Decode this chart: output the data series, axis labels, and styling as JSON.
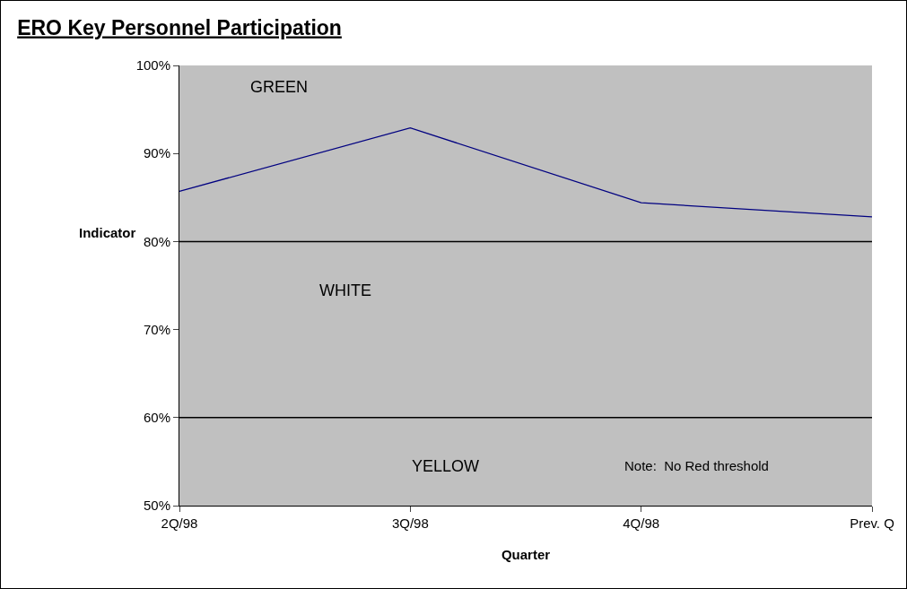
{
  "chart_data": {
    "type": "line",
    "title": "ERO Key Personnel Participation",
    "xlabel": "Quarter",
    "ylabel": "Indicator",
    "categories": [
      "2Q/98",
      "3Q/98",
      "4Q/98",
      "Prev. Q"
    ],
    "series": [
      {
        "color": "#000080",
        "values": [
          85.7,
          92.9,
          84.4,
          82.8
        ]
      }
    ],
    "ylim": [
      50,
      100
    ],
    "yticks": [
      {
        "value": 50,
        "label": "50%"
      },
      {
        "value": 60,
        "label": "60%"
      },
      {
        "value": 70,
        "label": "70%"
      },
      {
        "value": 80,
        "label": "80%"
      },
      {
        "value": 90,
        "label": "90%"
      },
      {
        "value": 100,
        "label": "100%"
      }
    ],
    "bands": [
      {
        "axis": "y",
        "from": 80,
        "to": 100,
        "label": "GREEN",
        "color": "#c0c0c0"
      },
      {
        "axis": "y",
        "from": 60,
        "to": 80,
        "label": "WHITE",
        "color": "#c0c0c0"
      },
      {
        "axis": "y",
        "from": 50,
        "to": 60,
        "label": "YELLOW",
        "color": "#c0c0c0"
      }
    ],
    "ref_lines": [
      {
        "axis": "y",
        "value": 80,
        "color": "#000000"
      },
      {
        "axis": "y",
        "value": 60,
        "color": "#000000"
      }
    ],
    "annotations": [
      "Note:  No Red threshold"
    ],
    "grid": false,
    "marker": "none",
    "line_style": "solid"
  }
}
